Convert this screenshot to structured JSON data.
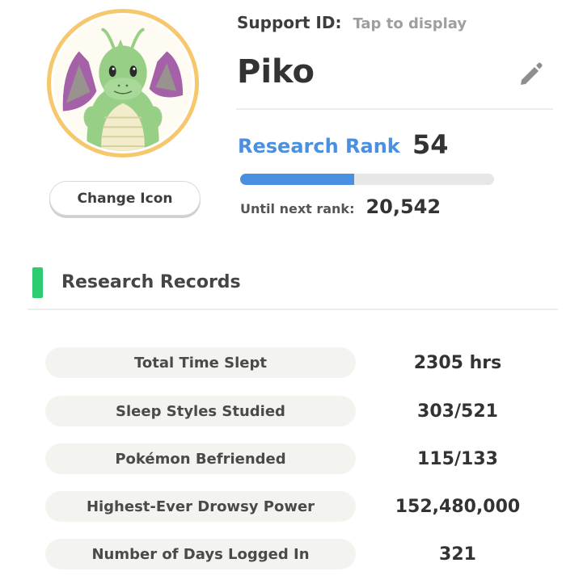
{
  "profile": {
    "avatar_icon": "dragonite-icon",
    "change_icon_label": "Change Icon",
    "support_id_label": "Support ID:",
    "support_id_value": "Tap to display",
    "name": "Piko",
    "edit_icon": "pencil-icon"
  },
  "rank": {
    "label": "Research Rank",
    "value": "54",
    "progress_fraction": 0.45,
    "next_rank_label": "Until next rank:",
    "next_rank_value": "20,542"
  },
  "records": {
    "title": "Research Records",
    "rows": [
      {
        "label": "Total Time Slept",
        "value": "2305 hrs"
      },
      {
        "label": "Sleep Styles Studied",
        "value": "303/521"
      },
      {
        "label": "Pokémon Befriended",
        "value": "115/133"
      },
      {
        "label": "Highest-Ever Drowsy Power",
        "value": "152,480,000"
      },
      {
        "label": "Number of Days Logged In",
        "value": "321"
      }
    ]
  },
  "colors": {
    "accent_blue": "#4a8fe0",
    "section_green": "#2ecc71",
    "avatar_ring": "#f6c86e"
  }
}
